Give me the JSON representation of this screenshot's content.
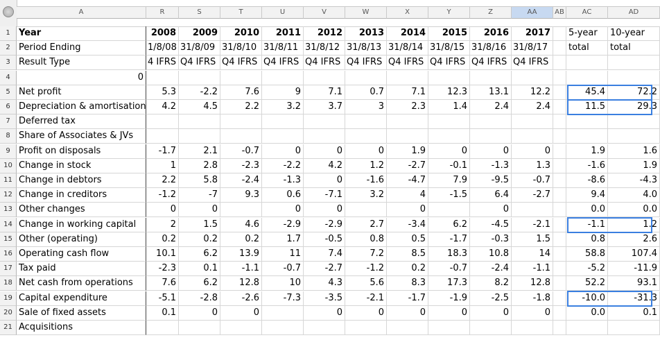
{
  "columns": [
    "A",
    "R",
    "S",
    "T",
    "U",
    "V",
    "W",
    "X",
    "Y",
    "Z",
    "AA",
    "AB",
    "AC",
    "AD"
  ],
  "rows": [
    {
      "n": "1",
      "a": "Year",
      "vals": [
        "2008",
        "2009",
        "2010",
        "2011",
        "2012",
        "2013",
        "2014",
        "2015",
        "2016",
        "2017"
      ],
      "ac": "5-year",
      "ad": "10-year",
      "bold": true
    },
    {
      "n": "2",
      "a": "Period Ending",
      "vals": [
        "1/8/08",
        "31/8/09",
        "31/8/10",
        "31/8/11",
        "31/8/12",
        "31/8/13",
        "31/8/14",
        "31/8/15",
        "31/8/16",
        "31/8/17"
      ],
      "ac": "total",
      "ad": "total"
    },
    {
      "n": "3",
      "a": "Result Type",
      "vals": [
        "4 IFRS",
        "Q4 IFRS",
        "Q4 IFRS",
        "Q4 IFRS",
        "Q4 IFRS",
        "Q4 IFRS",
        "Q4 IFRS",
        "Q4 IFRS",
        "Q4 IFRS",
        "Q4 IFRS"
      ],
      "ac": "",
      "ad": ""
    },
    {
      "n": "4",
      "a": "0",
      "vals": [
        "",
        "",
        "",
        "",
        "",
        "",
        "",
        "",
        "",
        ""
      ],
      "ac": "",
      "ad": ""
    },
    {
      "n": "5",
      "a": "Net profit",
      "vals": [
        "5.3",
        "-2.2",
        "7.6",
        "9",
        "7.1",
        "0.7",
        "7.1",
        "12.3",
        "13.1",
        "12.2"
      ],
      "ac": "45.4",
      "ad": "72.2"
    },
    {
      "n": "6",
      "a": "Depreciation & amortisation",
      "vals": [
        "4.2",
        "4.5",
        "2.2",
        "3.2",
        "3.7",
        "3",
        "2.3",
        "1.4",
        "2.4",
        "2.4"
      ],
      "ac": "11.5",
      "ad": "29.3"
    },
    {
      "n": "7",
      "a": "Deferred tax",
      "vals": [
        "",
        "",
        "",
        "",
        "",
        "",
        "",
        "",
        "",
        ""
      ],
      "ac": "",
      "ad": ""
    },
    {
      "n": "8",
      "a": "Share of Associates & JVs",
      "vals": [
        "",
        "",
        "",
        "",
        "",
        "",
        "",
        "",
        "",
        ""
      ],
      "ac": "",
      "ad": ""
    },
    {
      "n": "9",
      "a": "Profit on disposals",
      "vals": [
        "-1.7",
        "2.1",
        "-0.7",
        "0",
        "0",
        "0",
        "1.9",
        "0",
        "0",
        "0"
      ],
      "ac": "1.9",
      "ad": "1.6"
    },
    {
      "n": "10",
      "a": "Change in stock",
      "vals": [
        "1",
        "2.8",
        "-2.3",
        "-2.2",
        "4.2",
        "1.2",
        "-2.7",
        "-0.1",
        "-1.3",
        "1.3"
      ],
      "ac": "-1.6",
      "ad": "1.9"
    },
    {
      "n": "11",
      "a": "Change in debtors",
      "vals": [
        "2.2",
        "5.8",
        "-2.4",
        "-1.3",
        "0",
        "-1.6",
        "-4.7",
        "7.9",
        "-9.5",
        "-0.7"
      ],
      "ac": "-8.6",
      "ad": "-4.3"
    },
    {
      "n": "12",
      "a": "Change in creditors",
      "vals": [
        "-1.2",
        "-7",
        "9.3",
        "0.6",
        "-7.1",
        "3.2",
        "4",
        "-1.5",
        "6.4",
        "-2.7"
      ],
      "ac": "9.4",
      "ad": "4.0"
    },
    {
      "n": "13",
      "a": "Other changes",
      "vals": [
        "0",
        "0",
        "",
        "0",
        "0",
        "",
        "0",
        "",
        "0",
        ""
      ],
      "ac": "0.0",
      "ad": "0.0"
    },
    {
      "n": "14",
      "a": "Change in working capital",
      "vals": [
        "2",
        "1.5",
        "4.6",
        "-2.9",
        "-2.9",
        "2.7",
        "-3.4",
        "6.2",
        "-4.5",
        "-2.1"
      ],
      "ac": "-1.1",
      "ad": "1.2"
    },
    {
      "n": "15",
      "a": "Other (operating)",
      "vals": [
        "0.2",
        "0.2",
        "0.2",
        "1.7",
        "-0.5",
        "0.8",
        "0.5",
        "-1.7",
        "-0.3",
        "1.5"
      ],
      "ac": "0.8",
      "ad": "2.6"
    },
    {
      "n": "16",
      "a": "Operating cash flow",
      "vals": [
        "10.1",
        "6.2",
        "13.9",
        "11",
        "7.4",
        "7.2",
        "8.5",
        "18.3",
        "10.8",
        "14"
      ],
      "ac": "58.8",
      "ad": "107.4"
    },
    {
      "n": "17",
      "a": "Tax paid",
      "vals": [
        "-2.3",
        "0.1",
        "-1.1",
        "-0.7",
        "-2.7",
        "-1.2",
        "0.2",
        "-0.7",
        "-2.4",
        "-1.1"
      ],
      "ac": "-5.2",
      "ad": "-11.9"
    },
    {
      "n": "18",
      "a": "Net cash from operations",
      "vals": [
        "7.6",
        "6.2",
        "12.8",
        "10",
        "4.3",
        "5.6",
        "8.3",
        "17.3",
        "8.2",
        "12.8"
      ],
      "ac": "52.2",
      "ad": "93.1"
    },
    {
      "n": "19",
      "a": "Capital expenditure",
      "vals": [
        "-5.1",
        "-2.8",
        "-2.6",
        "-7.3",
        "-3.5",
        "-2.1",
        "-1.7",
        "-1.9",
        "-2.5",
        "-1.8"
      ],
      "ac": "-10.0",
      "ad": "-31.3"
    },
    {
      "n": "20",
      "a": "Sale of fixed assets",
      "vals": [
        "0.1",
        "0",
        "0",
        "",
        "0",
        "0",
        "0",
        "0",
        "0",
        "0"
      ],
      "ac": "0.0",
      "ad": "0.1"
    },
    {
      "n": "21",
      "a": "Acquisitions",
      "vals": [
        "",
        "",
        "",
        "",
        "",
        "",
        "",
        "",
        "",
        ""
      ],
      "ac": "",
      "ad": ""
    }
  ]
}
